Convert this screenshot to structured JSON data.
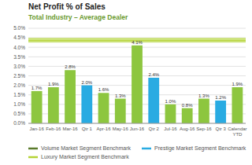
{
  "chart_data": {
    "type": "bar",
    "title": "Net Profit % of Sales",
    "subtitle": "Total Industry – Average Dealer",
    "categories": [
      "Jan-16",
      "Feb-16",
      "Mar-16",
      "Qtr 1",
      "Apr-16",
      "May-16",
      "Jun-16",
      "Qtr 2",
      "Jul-16",
      "Aug-16",
      "Sep-16",
      "Qtr 3",
      "Calendar\nYTD"
    ],
    "values": [
      1.7,
      1.9,
      2.8,
      2.0,
      1.6,
      1.3,
      4.1,
      2.4,
      1.0,
      0.8,
      1.3,
      1.2,
      1.9
    ],
    "value_labels": [
      "1.7%",
      "1.9%",
      "2.8%",
      "2.0%",
      "1.6%",
      "1.3%",
      "4.1%",
      "2.4%",
      "1.0%",
      "0.8%",
      "1.3%",
      "1.2%",
      "1.9%"
    ],
    "data_labels": true,
    "colors": [
      "#8dc63f",
      "#8dc63f",
      "#8dc63f",
      "#29abe2",
      "#8dc63f",
      "#8dc63f",
      "#8dc63f",
      "#29abe2",
      "#8dc63f",
      "#8dc63f",
      "#8dc63f",
      "#29abe2",
      "#8dc63f"
    ],
    "ylim": [
      0.0,
      5.0
    ],
    "yticks": [
      {
        "value": 0.0,
        "label": "0.0%"
      },
      {
        "value": 0.5,
        "label": "0.5%"
      },
      {
        "value": 1.0,
        "label": "1.0%"
      },
      {
        "value": 1.5,
        "label": "1.5%"
      },
      {
        "value": 2.0,
        "label": "2.0%"
      },
      {
        "value": 2.5,
        "label": "2.5%"
      },
      {
        "value": 3.0,
        "label": "3.0%"
      },
      {
        "value": 3.5,
        "label": "3.5%"
      },
      {
        "value": 4.0,
        "label": "4.0%"
      },
      {
        "value": 4.5,
        "label": "4.5%"
      },
      {
        "value": 5.0,
        "label": "5.0%"
      }
    ],
    "grid": true,
    "legend": "bottom",
    "benchmarks": [
      {
        "name": "Volume Market Segment Benchmark",
        "color": "#5a7a2b"
      },
      {
        "name": "Luxury Market Segment Benchmark",
        "color": "#b5d335",
        "value": 4.35,
        "band": [
          4.25,
          4.5
        ],
        "band_color": "#c8e06e"
      },
      {
        "name": "Prestige Market Segment Benchmark",
        "color": "#29abe2"
      }
    ]
  }
}
